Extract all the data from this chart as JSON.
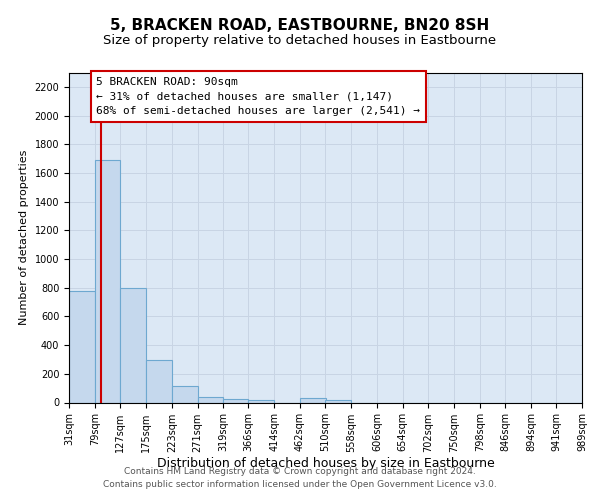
{
  "title": "5, BRACKEN ROAD, EASTBOURNE, BN20 8SH",
  "subtitle": "Size of property relative to detached houses in Eastbourne",
  "xlabel": "Distribution of detached houses by size in Eastbourne",
  "ylabel": "Number of detached properties",
  "bin_edges": [
    31,
    79,
    127,
    175,
    223,
    271,
    319,
    366,
    414,
    462,
    510,
    558,
    606,
    654,
    702,
    750,
    798,
    846,
    894,
    941,
    989
  ],
  "bar_heights": [
    780,
    1690,
    800,
    295,
    115,
    40,
    25,
    20,
    0,
    30,
    20,
    0,
    0,
    0,
    0,
    0,
    0,
    0,
    0,
    0
  ],
  "bar_color": "#c5d8ed",
  "bar_edge_color": "#6ea8d0",
  "bar_edge_width": 0.8,
  "reference_line_x": 90,
  "reference_line_color": "#cc0000",
  "ylim": [
    0,
    2300
  ],
  "yticks": [
    0,
    200,
    400,
    600,
    800,
    1000,
    1200,
    1400,
    1600,
    1800,
    2000,
    2200
  ],
  "annotation_title": "5 BRACKEN ROAD: 90sqm",
  "annotation_line1": "← 31% of detached houses are smaller (1,147)",
  "annotation_line2": "68% of semi-detached houses are larger (2,541) →",
  "annotation_box_color": "#ffffff",
  "annotation_box_edge_color": "#cc0000",
  "grid_color": "#c8d4e4",
  "background_color": "#dce8f5",
  "footer_line1": "Contains HM Land Registry data © Crown copyright and database right 2024.",
  "footer_line2": "Contains public sector information licensed under the Open Government Licence v3.0.",
  "title_fontsize": 11,
  "subtitle_fontsize": 9.5,
  "xlabel_fontsize": 9,
  "ylabel_fontsize": 8,
  "tick_fontsize": 7,
  "annotation_fontsize": 8,
  "footer_fontsize": 6.5
}
